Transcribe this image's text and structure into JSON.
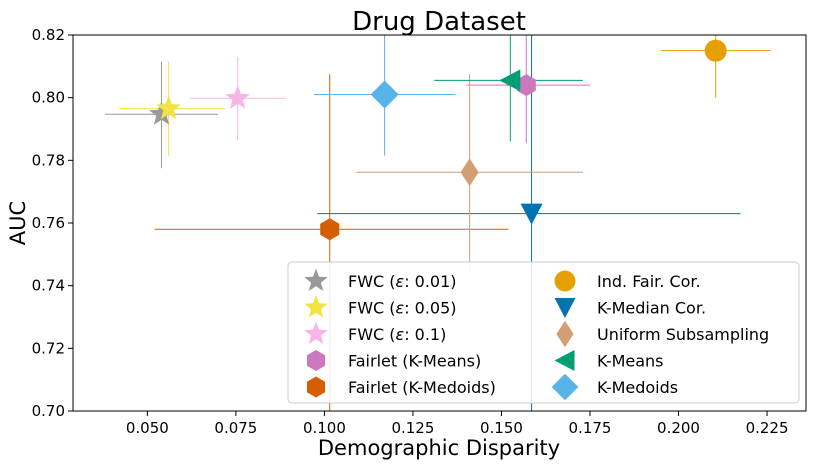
{
  "chart_data": {
    "type": "scatter",
    "title": "Drug Dataset",
    "xlabel": "Demographic Disparity",
    "ylabel": "AUC",
    "xlim": [
      0.029,
      0.236
    ],
    "ylim": [
      0.7,
      0.82
    ],
    "xticks": [
      0.05,
      0.075,
      0.1,
      0.125,
      0.15,
      0.175,
      0.2,
      0.225
    ],
    "xtick_labels": [
      "0.050",
      "0.075",
      "0.100",
      "0.125",
      "0.150",
      "0.175",
      "0.200",
      "0.225"
    ],
    "yticks": [
      0.7,
      0.72,
      0.74,
      0.76,
      0.78,
      0.8,
      0.82
    ],
    "ytick_labels": [
      "0.70",
      "0.72",
      "0.74",
      "0.76",
      "0.78",
      "0.80",
      "0.82"
    ],
    "grid": false,
    "legend_position": "lower-right",
    "series": [
      {
        "name": "FWC (ε: 0.01)",
        "legend_prefix": "FWC (",
        "legend_symbol": "ε",
        "legend_suffix": ": 0.01)",
        "marker": "star",
        "color": "#999999",
        "x": 0.054,
        "y": 0.7947,
        "xerr_low": 0.038,
        "xerr_high": 0.07,
        "yerr_low": 0.7775,
        "yerr_high": 0.8115
      },
      {
        "name": "FWC (ε: 0.05)",
        "legend_prefix": "FWC (",
        "legend_symbol": "ε",
        "legend_suffix": ": 0.05)",
        "marker": "star",
        "color": "#f0e442",
        "x": 0.056,
        "y": 0.7965,
        "xerr_low": 0.042,
        "xerr_high": 0.072,
        "yerr_low": 0.7815,
        "yerr_high": 0.8115
      },
      {
        "name": "FWC (ε: 0.1)",
        "legend_prefix": "FWC (",
        "legend_symbol": "ε",
        "legend_suffix": ": 0.1)",
        "marker": "star",
        "color": "#f9b5e5",
        "x": 0.0755,
        "y": 0.7998,
        "xerr_low": 0.062,
        "xerr_high": 0.089,
        "yerr_low": 0.7865,
        "yerr_high": 0.813
      },
      {
        "name": "Fairlet (K-Means)",
        "marker": "hexagon",
        "color": "#cc78bc",
        "x": 0.157,
        "y": 0.804,
        "xerr_low": 0.14,
        "xerr_high": 0.175,
        "yerr_low": 0.7855,
        "yerr_high": 0.82
      },
      {
        "name": "Fairlet (K-Medoids)",
        "marker": "hexagon",
        "color": "#d55e00",
        "x": 0.1015,
        "y": 0.758,
        "xerr_low": 0.052,
        "xerr_high": 0.152,
        "yerr_low": 0.7,
        "yerr_high": 0.8075
      },
      {
        "name": "Ind. Fair. Cor.",
        "marker": "circle",
        "color": "#e69f00",
        "x": 0.2105,
        "y": 0.815,
        "xerr_low": 0.195,
        "xerr_high": 0.226,
        "yerr_low": 0.8,
        "yerr_high": 0.82
      },
      {
        "name": "K-Median Cor.",
        "marker": "triangle-down",
        "color": "#0173b2",
        "x": 0.1585,
        "y": 0.763,
        "xerr_low": 0.098,
        "xerr_high": 0.2175,
        "yerr_low": 0.7,
        "yerr_high": 0.82
      },
      {
        "name": "Uniform Subsampling",
        "marker": "diamond-thin",
        "color": "#d39e74",
        "x": 0.141,
        "y": 0.7762,
        "xerr_low": 0.109,
        "xerr_high": 0.173,
        "yerr_low": 0.745,
        "yerr_high": 0.8075
      },
      {
        "name": "K-Means",
        "marker": "triangle-left",
        "color": "#029e73",
        "x": 0.1525,
        "y": 0.8055,
        "xerr_low": 0.131,
        "xerr_high": 0.173,
        "yerr_low": 0.786,
        "yerr_high": 0.82
      },
      {
        "name": "K-Medoids",
        "marker": "diamond",
        "color": "#56b4e9",
        "x": 0.117,
        "y": 0.801,
        "xerr_low": 0.097,
        "xerr_high": 0.137,
        "yerr_low": 0.7815,
        "yerr_high": 0.82
      }
    ],
    "legend_columns": [
      [
        0,
        1,
        2,
        3,
        4
      ],
      [
        5,
        6,
        7,
        8,
        9
      ]
    ]
  }
}
